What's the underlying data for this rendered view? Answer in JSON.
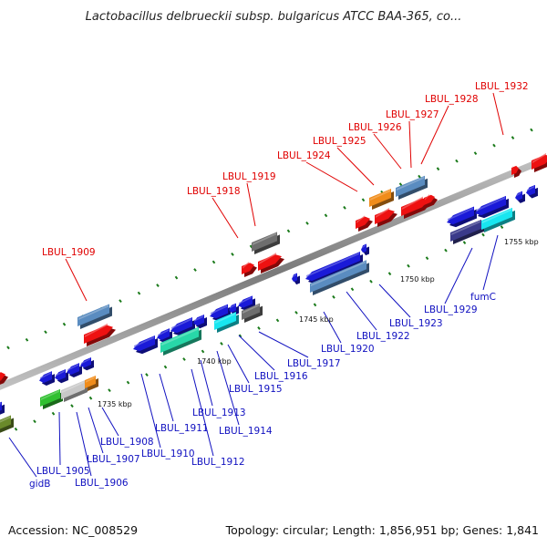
{
  "title": "Lactobacillus delbrueckii subsp. bulgaricus ATCC BAA-365, co...",
  "footer": {
    "accession": "Accession: NC_008529",
    "topology": "Topology: circular; Length: 1,856,951 bp; Genes: 1,841"
  },
  "colors": {
    "red": "#ee1111",
    "blue": "#1a1ad8",
    "steelblue": "#5a8cc0",
    "gray": "#6e6e6e",
    "orange": "#f08c1a",
    "cyan": "#18e6f0",
    "teal": "#28d8a8",
    "green": "#30c030",
    "darkslate": "#3a3a8a",
    "olive": "#6a8a2a",
    "lightgray": "#c8c8c8",
    "label_red": "#e00000",
    "label_blue": "#1010c0"
  },
  "kbp_labels": [
    "1735 kbp",
    "1740 kbp",
    "1745 kbp",
    "1750 kbp",
    "1755 kbp"
  ],
  "red_labels": [
    "LBUL_1909",
    "LBUL_1918",
    "LBUL_1919",
    "LBUL_1924",
    "LBUL_1925",
    "LBUL_1926",
    "LBUL_1927",
    "LBUL_1928",
    "LBUL_1932"
  ],
  "blue_labels": [
    "gidB",
    "LBUL_1905",
    "LBUL_1906",
    "LBUL_1907",
    "LBUL_1908",
    "LBUL_1910",
    "LBUL_1911",
    "LBUL_1912",
    "LBUL_1913",
    "LBUL_1914",
    "LBUL_1915",
    "LBUL_1916",
    "LBUL_1917",
    "LBUL_1920",
    "LBUL_1922",
    "LBUL_1923",
    "LBUL_1929",
    "fumC"
  ]
}
